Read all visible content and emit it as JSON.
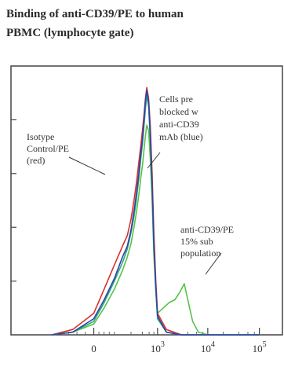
{
  "chart_data": {
    "type": "line",
    "title_line1": "Binding of anti-CD39/PE to human",
    "title_line2": "PBMC (lymphocyte gate)",
    "xlabel": "",
    "ylabel": "",
    "x_scale": "biexponential (log above 10^2)",
    "xlim": [
      -100,
      100000
    ],
    "ylim": [
      0,
      100
    ],
    "x_ticks": [
      {
        "value": 0,
        "label": "0"
      },
      {
        "value": 1000,
        "base": "10",
        "exp": "3"
      },
      {
        "value": 10000,
        "base": "10",
        "exp": "4"
      },
      {
        "value": 100000,
        "base": "10",
        "exp": "5"
      }
    ],
    "annotations": [
      {
        "lines": [
          "Isotype",
          "Control/PE",
          "(red)"
        ],
        "points_to": "Isotype Control/PE (red)"
      },
      {
        "lines": [
          "Cells pre",
          "blocked w",
          "anti-CD39",
          "mAb (blue)"
        ],
        "points_to": "Cells pre blocked w anti-CD39 mAb (blue)"
      },
      {
        "lines": [
          "anti-CD39/PE",
          "15% sub",
          "population"
        ],
        "points_to": "anti-CD39/PE (green)"
      }
    ],
    "series": [
      {
        "color": "#d8332a",
        "x": [
          -100,
          -50,
          0,
          40,
          80,
          120,
          160,
          200,
          240,
          280,
          320,
          360,
          400,
          440,
          480,
          520,
          580,
          640,
          720,
          800,
          900,
          1000,
          1500,
          3000,
          10000,
          100000
        ],
        "y": [
          0,
          2,
          8,
          17,
          26,
          33,
          37,
          43,
          50,
          57,
          64,
          70,
          76,
          82,
          88,
          92,
          88,
          78,
          60,
          38,
          20,
          8,
          2,
          0,
          0,
          0
        ]
      },
      {
        "color": "#2f43a8",
        "x": [
          -100,
          -50,
          0,
          40,
          80,
          120,
          160,
          200,
          240,
          280,
          320,
          360,
          400,
          440,
          480,
          520,
          580,
          640,
          720,
          800,
          900,
          1000,
          1500,
          3000,
          10000,
          100000
        ],
        "y": [
          0,
          1,
          6,
          13,
          21,
          29,
          33,
          39,
          46,
          53,
          60,
          67,
          73,
          80,
          87,
          91,
          87,
          75,
          56,
          34,
          18,
          7,
          1,
          0,
          0,
          0
        ]
      },
      {
        "color": "#2aa882",
        "x": [
          -100,
          -50,
          0,
          40,
          80,
          120,
          160,
          200,
          240,
          280,
          320,
          360,
          400,
          440,
          480,
          520,
          580,
          640,
          720,
          800,
          900,
          1000,
          1500,
          3000,
          10000,
          100000
        ],
        "y": [
          0,
          1,
          5,
          12,
          20,
          27,
          32,
          38,
          44,
          51,
          58,
          65,
          71,
          78,
          84,
          89,
          85,
          73,
          55,
          33,
          17,
          6,
          1,
          0,
          0,
          0
        ]
      },
      {
        "color": "#55c24a",
        "x": [
          -100,
          -50,
          0,
          40,
          80,
          120,
          160,
          200,
          240,
          280,
          320,
          360,
          400,
          440,
          480,
          520,
          580,
          640,
          720,
          800,
          900,
          1000,
          1300,
          1700,
          2200,
          2800,
          3400,
          4000,
          5000,
          6500,
          10000,
          100000
        ],
        "y": [
          0,
          1,
          4,
          10,
          17,
          24,
          29,
          34,
          40,
          46,
          52,
          58,
          63,
          69,
          74,
          78,
          76,
          66,
          50,
          30,
          16,
          8,
          10,
          12,
          13,
          16,
          19,
          13,
          5,
          1,
          0,
          0
        ]
      }
    ]
  }
}
